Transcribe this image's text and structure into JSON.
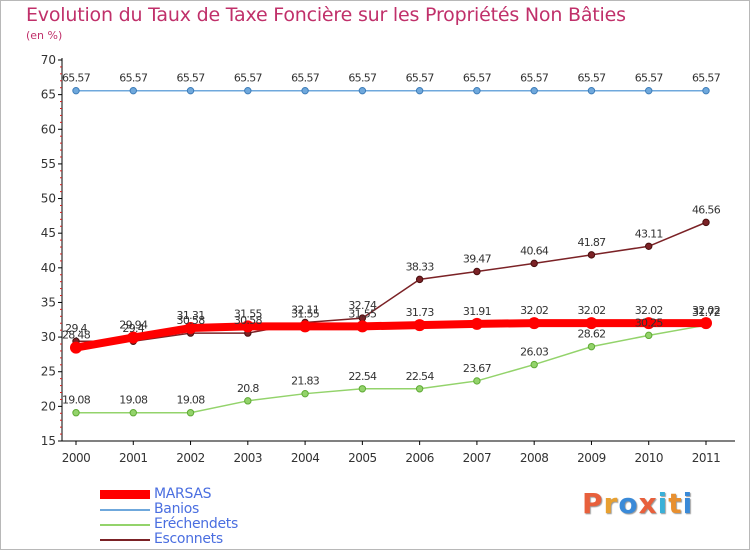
{
  "chart_data": {
    "type": "line",
    "title": "Evolution du Taux de Taxe Foncière sur les Propriétés Non Bâties",
    "subtitle": "(en %)",
    "x": [
      "2000",
      "2001",
      "2002",
      "2003",
      "2004",
      "2005",
      "2006",
      "2007",
      "2008",
      "2009",
      "2010",
      "2011"
    ],
    "ylim": [
      15,
      70
    ],
    "yticks": [
      15,
      20,
      25,
      30,
      35,
      40,
      45,
      50,
      55,
      60,
      65,
      70
    ],
    "grid": false,
    "legend_position": "bottom-left",
    "series": [
      {
        "name": "MARSAS",
        "color": "#ff0000",
        "values": [
          28.48,
          29.94,
          31.31,
          31.55,
          31.55,
          31.55,
          31.73,
          31.91,
          32.02,
          32.02,
          32.02,
          32.02
        ],
        "labels": [
          "28.48",
          "29.94",
          "31.31",
          "31.55",
          "31.55",
          "31.55",
          "31.73",
          "31.91",
          "32.02",
          "32.02",
          "32.02",
          "32.02"
        ]
      },
      {
        "name": "Banios",
        "color": "#6fa8dc",
        "values": [
          65.57,
          65.57,
          65.57,
          65.57,
          65.57,
          65.57,
          65.57,
          65.57,
          65.57,
          65.57,
          65.57,
          65.57
        ],
        "labels": [
          "65.57",
          "65.57",
          "65.57",
          "65.57",
          "65.57",
          "65.57",
          "65.57",
          "65.57",
          "65.57",
          "65.57",
          "65.57",
          "65.57"
        ]
      },
      {
        "name": "Eréchendets",
        "color": "#93d36b",
        "values": [
          19.08,
          19.08,
          19.08,
          20.8,
          21.83,
          22.54,
          22.54,
          23.67,
          26.03,
          28.62,
          30.25,
          31.72
        ],
        "labels": [
          "19.08",
          "19.08",
          "19.08",
          "20.8",
          "21.83",
          "22.54",
          "22.54",
          "23.67",
          "26.03",
          "28.62",
          "30.25",
          "31.72"
        ]
      },
      {
        "name": "Esconnets",
        "color": "#7b2226",
        "values": [
          29.4,
          29.4,
          30.58,
          30.58,
          32.11,
          32.74,
          38.33,
          39.47,
          40.64,
          41.87,
          43.11,
          46.56
        ],
        "labels": [
          "29.4",
          "29.4",
          "30.58",
          "30.58",
          "32.11",
          "32.74",
          "38.33",
          "39.47",
          "40.64",
          "41.87",
          "43.11",
          "46.56"
        ]
      }
    ]
  },
  "branding": {
    "logo_text": "Proxiti",
    "logo_colors": [
      "#e8603c",
      "#e8a030",
      "#3a8ad8",
      "#e8603c",
      "#3ab0d8",
      "#e89030",
      "#3a8ad8"
    ]
  }
}
